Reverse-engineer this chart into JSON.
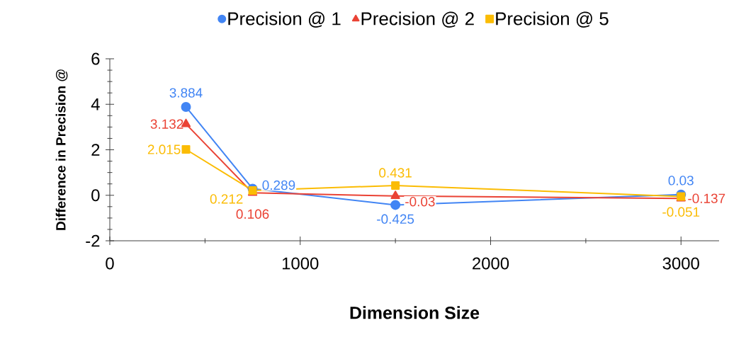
{
  "chart_data": {
    "type": "line",
    "xlabel": "Dimension Size",
    "ylabel": "Difference in Precision @",
    "x": [
      400,
      750,
      1500,
      3000
    ],
    "series": [
      {
        "name": "Precision @ 1",
        "color": "#4285f4",
        "marker": "circle",
        "values": [
          3.884,
          0.289,
          -0.425,
          0.03
        ]
      },
      {
        "name": "Precision @ 2",
        "color": "#ea4335",
        "marker": "triangle",
        "values": [
          3.132,
          0.106,
          -0.03,
          -0.137
        ]
      },
      {
        "name": "Precision @ 5",
        "color": "#fbbc04",
        "marker": "square",
        "values": [
          2.015,
          0.212,
          0.431,
          -0.051
        ]
      }
    ],
    "xlim": [
      0,
      3200
    ],
    "xticks": [
      0,
      1000,
      2000,
      3000
    ],
    "ylim": [
      -2,
      6
    ],
    "yticks": [
      -2,
      0,
      2,
      4,
      6
    ],
    "grid": false,
    "legend": "top",
    "data_labels": true,
    "line_style": "solid"
  }
}
